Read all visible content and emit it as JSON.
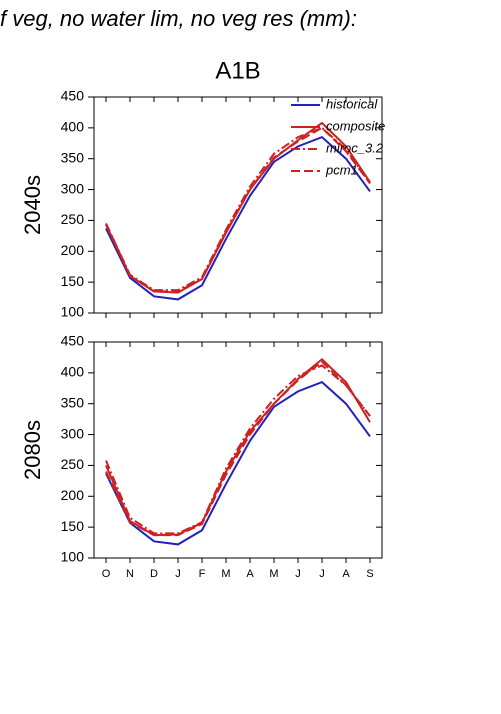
{
  "chart_data": [
    {
      "type": "line",
      "title": "f veg, no water lim, no veg res (mm):",
      "subtitle": "A1B",
      "ylabel": "2040s",
      "ylim": [
        100,
        450
      ],
      "yticks": [
        100,
        150,
        200,
        250,
        300,
        350,
        400,
        450
      ],
      "series": [
        {
          "name": "historical",
          "color": "#2222bb",
          "dash": "solid",
          "values": [
            237,
            157,
            127,
            122,
            145,
            220,
            290,
            345,
            370,
            385,
            350,
            297
          ]
        },
        {
          "name": "composite",
          "color": "#cc2222",
          "dash": "solid",
          "values": [
            243,
            160,
            135,
            133,
            155,
            230,
            300,
            350,
            380,
            408,
            370,
            312
          ]
        },
        {
          "name": "miroc_3.2",
          "color": "#cc2222",
          "dash": "dashdot",
          "values": [
            245,
            162,
            137,
            137,
            158,
            235,
            305,
            358,
            385,
            400,
            365,
            310
          ]
        },
        {
          "name": "pcm1",
          "color": "#cc2222",
          "dash": "dash",
          "values": [
            245,
            160,
            135,
            135,
            155,
            232,
            300,
            352,
            378,
            400,
            362,
            310
          ]
        }
      ]
    },
    {
      "type": "line",
      "ylabel": "2080s",
      "categories": [
        "O",
        "N",
        "D",
        "J",
        "F",
        "M",
        "A",
        "M",
        "J",
        "J",
        "A",
        "S"
      ],
      "ylim": [
        100,
        450
      ],
      "yticks": [
        100,
        150,
        200,
        250,
        300,
        350,
        400,
        450
      ],
      "series": [
        {
          "color": "#2222bb",
          "dash": "solid",
          "values": [
            237,
            157,
            127,
            122,
            145,
            220,
            290,
            345,
            370,
            385,
            350,
            297
          ]
        },
        {
          "color": "#cc2222",
          "dash": "solid",
          "values": [
            250,
            160,
            137,
            138,
            157,
            240,
            305,
            350,
            390,
            422,
            385,
            320
          ]
        },
        {
          "color": "#cc2222",
          "dash": "dashdot",
          "values": [
            258,
            165,
            140,
            140,
            158,
            245,
            310,
            358,
            395,
            412,
            380,
            330
          ]
        },
        {
          "color": "#cc2222",
          "dash": "dash",
          "values": [
            240,
            158,
            137,
            137,
            155,
            235,
            300,
            350,
            388,
            418,
            380,
            330
          ]
        }
      ]
    }
  ]
}
